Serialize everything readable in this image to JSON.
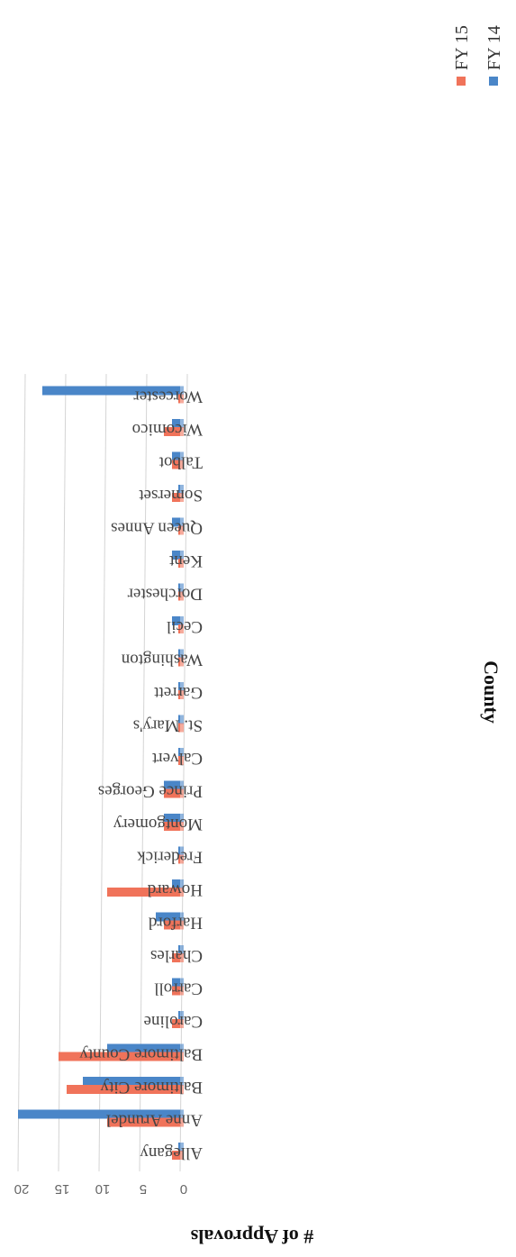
{
  "chart_data": {
    "type": "bar",
    "orientation": "rotated-90",
    "ylabel": "# of Approvals",
    "xlabel": "County",
    "ylim": [
      0,
      20
    ],
    "yticks": [
      "0",
      "5",
      "10",
      "15",
      "20"
    ],
    "grid": true,
    "legend_position": "top-right",
    "categories": [
      "Allegany",
      "Anne Arundel",
      "Baltimore City",
      "Baltimore County",
      "Caroline",
      "Carroll",
      "Charles",
      "Harford",
      "Howard",
      "Frederick",
      "Montgomery",
      "Prince Georges",
      "Calvert",
      "St. Mary's",
      "Garrett",
      "Washington",
      "Cecil",
      "Dorchester",
      "Kent",
      "Queen Annes",
      "Somerset",
      "Talbot",
      "Wicomico",
      "Worcester"
    ],
    "series": [
      {
        "name": "FY 14",
        "color": "#4a86c8",
        "values": [
          0,
          20,
          12,
          9,
          0,
          1,
          0,
          3,
          1,
          0,
          2,
          2,
          0,
          0,
          0,
          0,
          1,
          0,
          1,
          1,
          0,
          1,
          1,
          17
        ]
      },
      {
        "name": "FY 15",
        "color": "#f0735a",
        "values": [
          1,
          9,
          14,
          15,
          1,
          1,
          1,
          2,
          9,
          0,
          2,
          2,
          0,
          0,
          0,
          0,
          0,
          0,
          0,
          0,
          1,
          1,
          2,
          0
        ]
      }
    ]
  }
}
